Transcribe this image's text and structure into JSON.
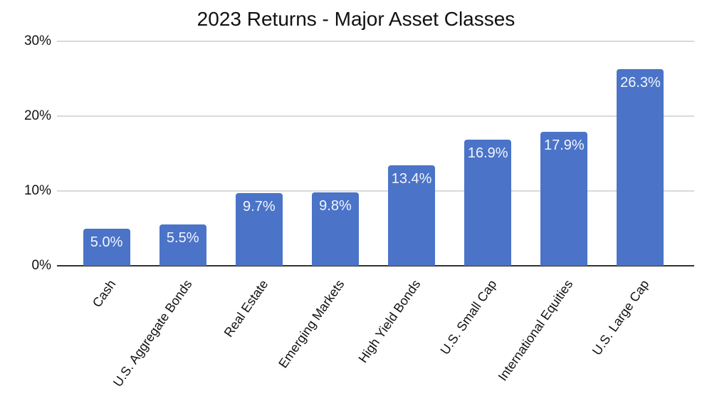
{
  "chart": {
    "title": "2023 Returns - Major Asset Classes"
  },
  "chart_data": {
    "type": "bar",
    "title": "2023 Returns - Major Asset Classes",
    "categories": [
      "Cash",
      "U.S. Aggregate Bonds",
      "Real Estate",
      "Emerging Markets",
      "High Yield Bonds",
      "U.S. Small Cap",
      "International Equities",
      "U.S. Large Cap"
    ],
    "values": [
      5.0,
      5.5,
      9.7,
      9.8,
      13.4,
      16.9,
      17.9,
      26.3
    ],
    "value_labels": [
      "5.0%",
      "5.5%",
      "9.7%",
      "9.8%",
      "13.4%",
      "16.9%",
      "17.9%",
      "26.3%"
    ],
    "xlabel": "",
    "ylabel": "",
    "ylim": [
      0,
      30
    ],
    "y_ticks": [
      {
        "label": "0%",
        "value": 0
      },
      {
        "label": "10%",
        "value": 10
      },
      {
        "label": "20%",
        "value": 20
      },
      {
        "label": "30%",
        "value": 30
      }
    ],
    "grid": "horizontal-only",
    "legend": "none",
    "bar_labels_position": "inside-top",
    "x_label_rotation_deg": -55,
    "colors": {
      "bar": "#4b74c8",
      "bar_label_text": "#f2f5fd",
      "gridline": "#d9d9d9",
      "axis_line": "#333333",
      "text": "#111111"
    }
  }
}
